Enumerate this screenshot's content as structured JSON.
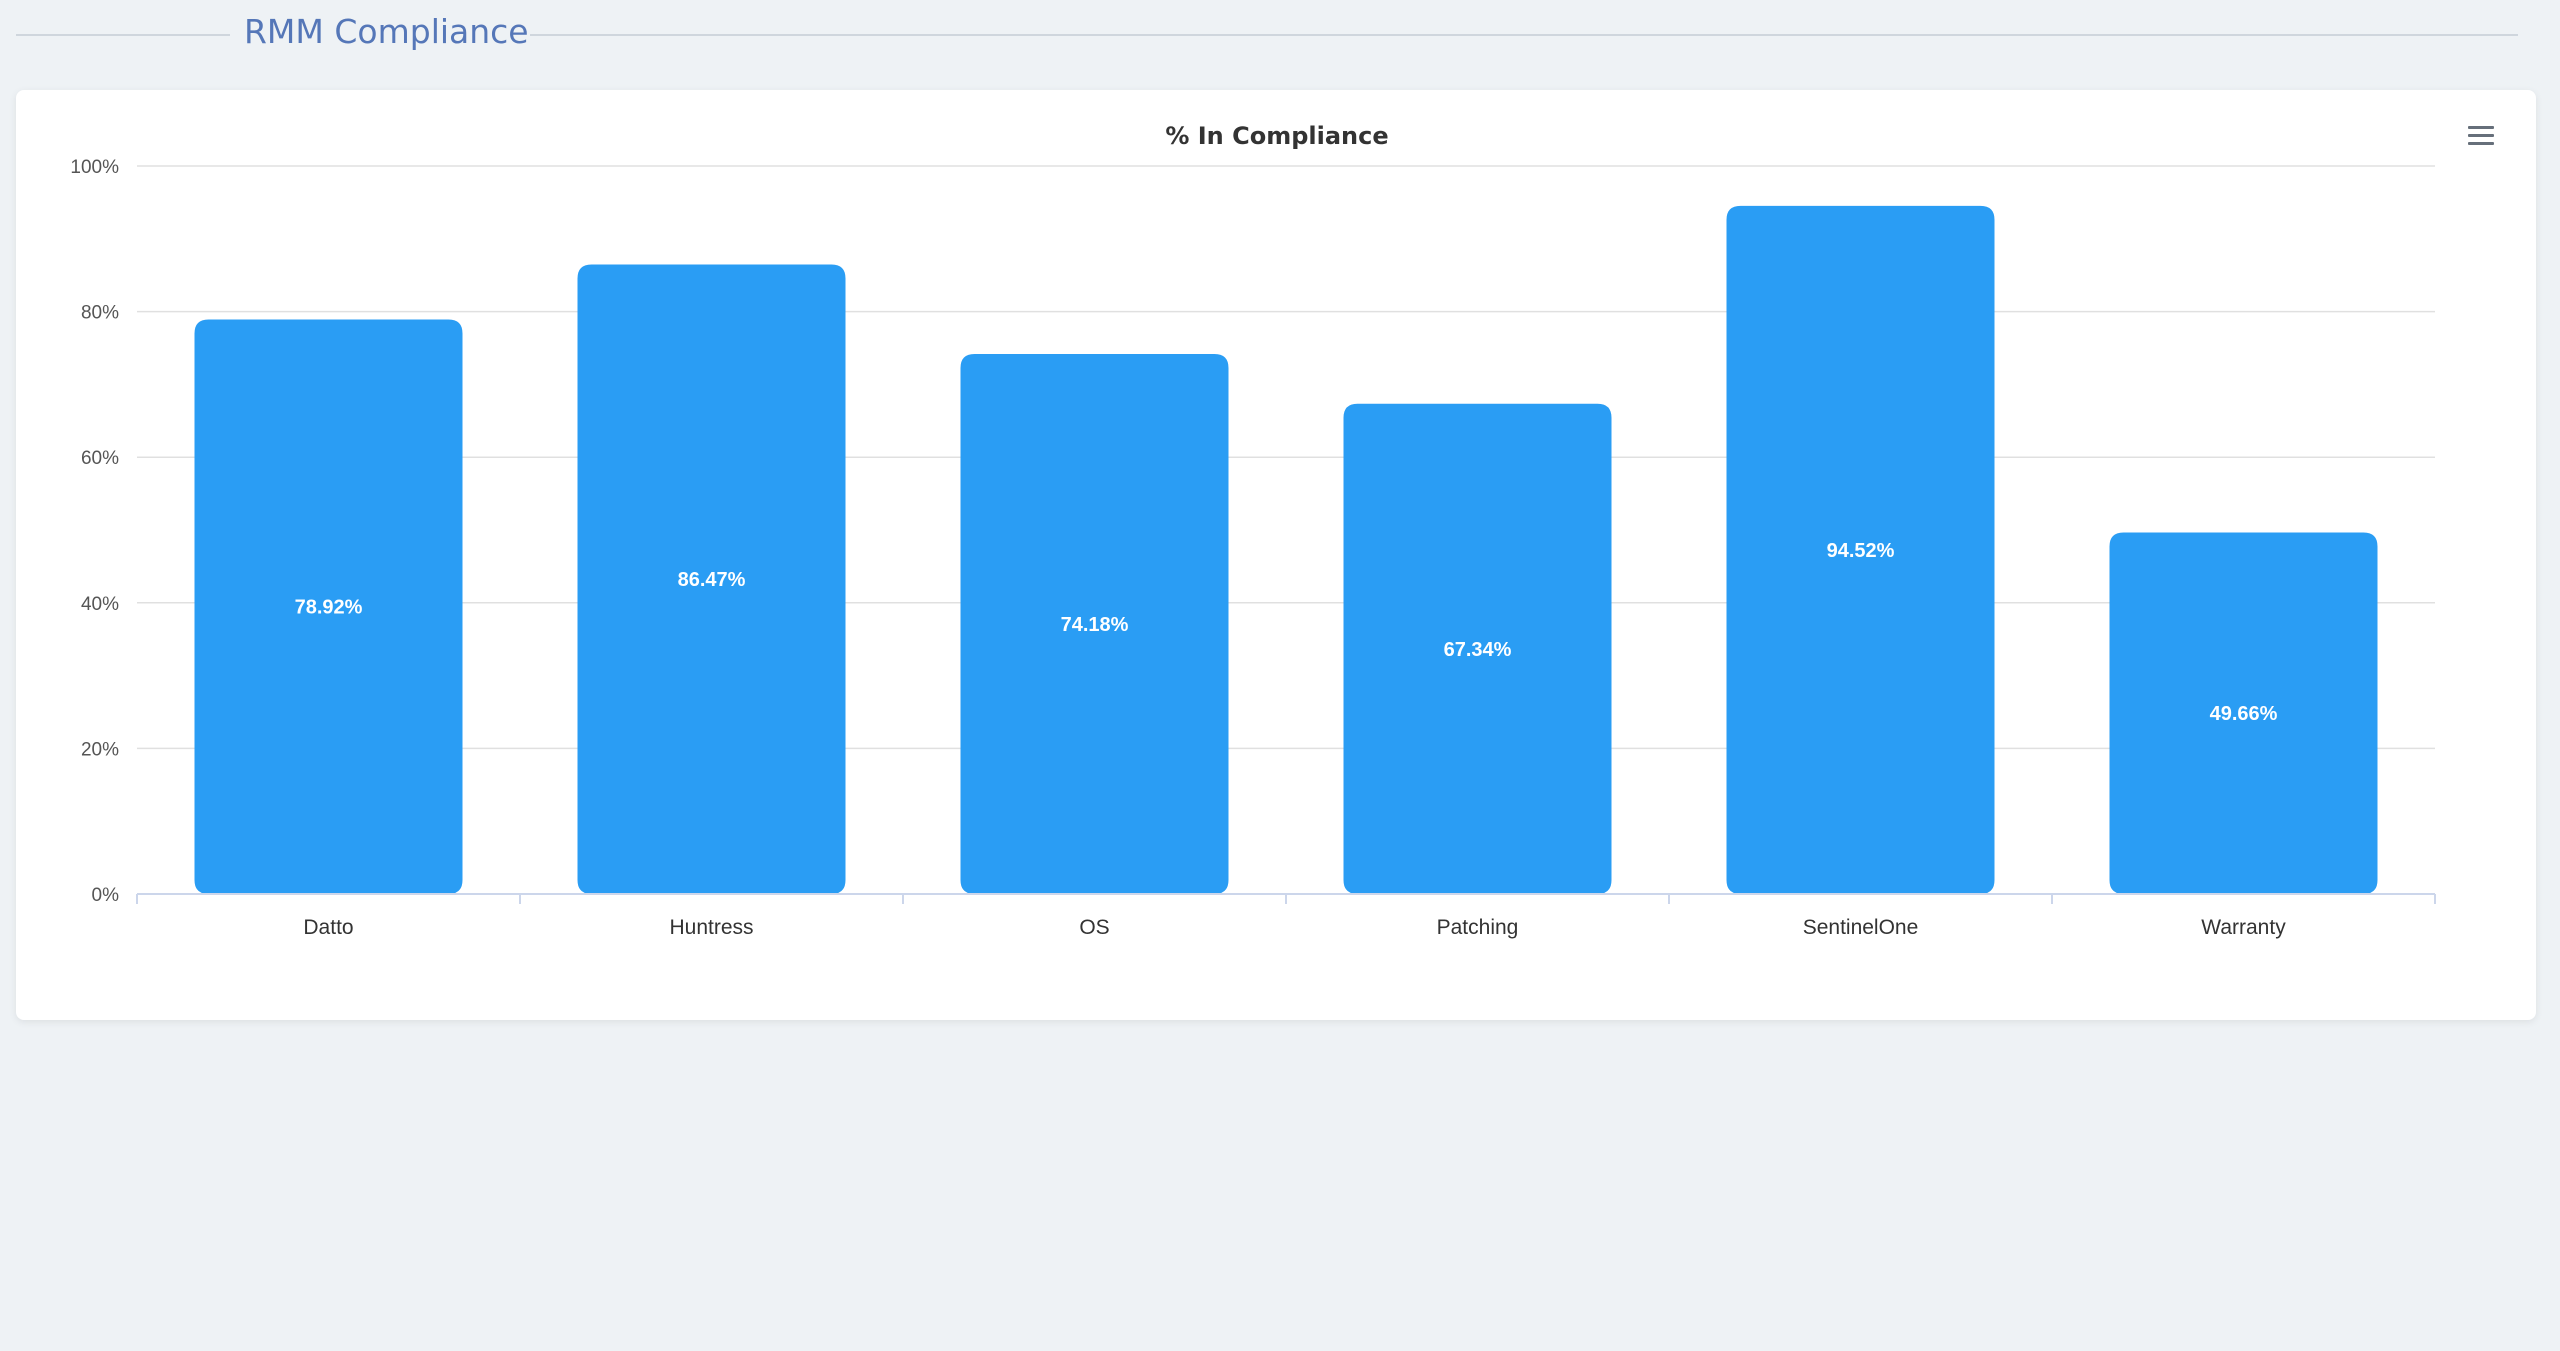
{
  "header": {
    "title": "RMM Compliance"
  },
  "menu": {
    "icon": "hamburger-menu-icon"
  },
  "colors": {
    "bar": "#2a9df4",
    "grid": "#e0e0e0",
    "background": "#eef2f5",
    "title_accent": "#5577b8"
  },
  "chart_data": {
    "type": "bar",
    "title": "% In Compliance",
    "categories": [
      "Datto",
      "Huntress",
      "OS",
      "Patching",
      "SentinelOne",
      "Warranty"
    ],
    "values": [
      78.92,
      86.47,
      74.18,
      67.34,
      94.52,
      49.66
    ],
    "data_labels": [
      "78.92%",
      "86.47%",
      "74.18%",
      "67.34%",
      "94.52%",
      "49.66%"
    ],
    "y_ticks": [
      "0%",
      "20%",
      "40%",
      "60%",
      "80%",
      "100%"
    ],
    "ylim": [
      0,
      100
    ],
    "grid": true,
    "legend": "none"
  }
}
